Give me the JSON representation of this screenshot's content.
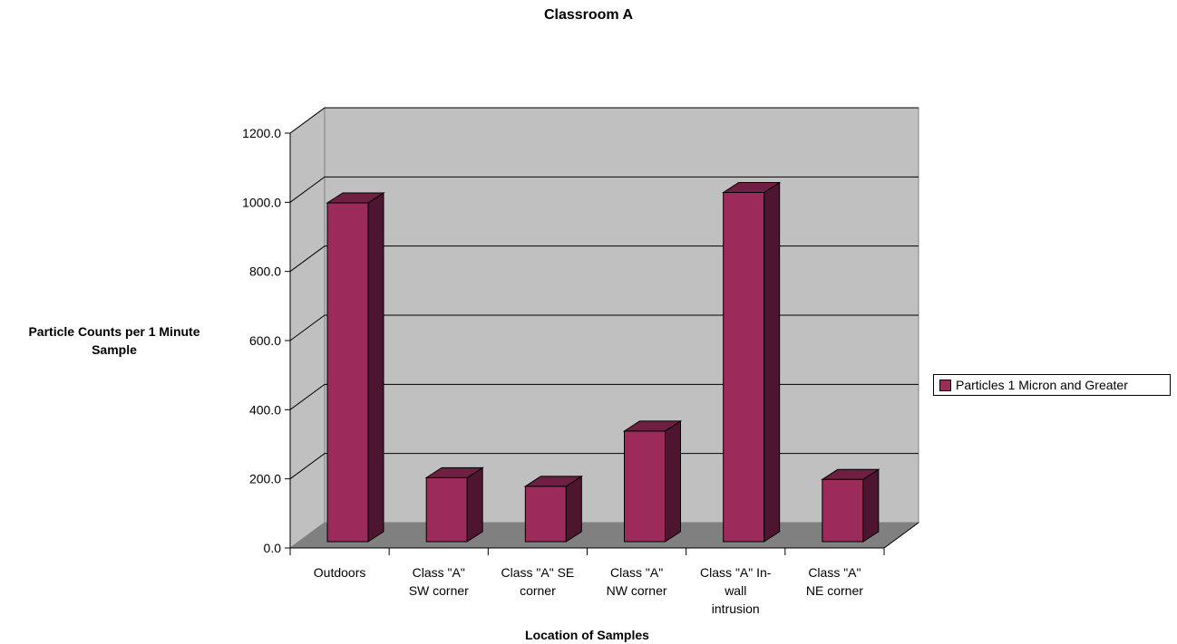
{
  "chart_data": {
    "type": "bar",
    "title": "Classroom A",
    "xlabel": "Location of Samples",
    "ylabel_lines": [
      "Particle Counts per 1 Minute",
      "Sample"
    ],
    "ylim": [
      0,
      1200
    ],
    "y_ticks": [
      "0.0",
      "200.0",
      "400.0",
      "600.0",
      "800.0",
      "1000.0",
      "1200.0"
    ],
    "grid": true,
    "legend_position": "right",
    "categories": [
      [
        "Outdoors"
      ],
      [
        "Class \"A\"",
        "SW corner"
      ],
      [
        "Class \"A\" SE",
        "corner"
      ],
      [
        "Class \"A\"",
        "NW corner"
      ],
      [
        "Class \"A\" In-",
        "wall",
        "intrusion"
      ],
      [
        "Class \"A\"",
        "NE corner"
      ]
    ],
    "series": [
      {
        "name": "Particles 1 Micron and Greater",
        "values": [
          980,
          185,
          160,
          320,
          1010,
          180
        ],
        "color": "#9c2b5c"
      }
    ]
  }
}
